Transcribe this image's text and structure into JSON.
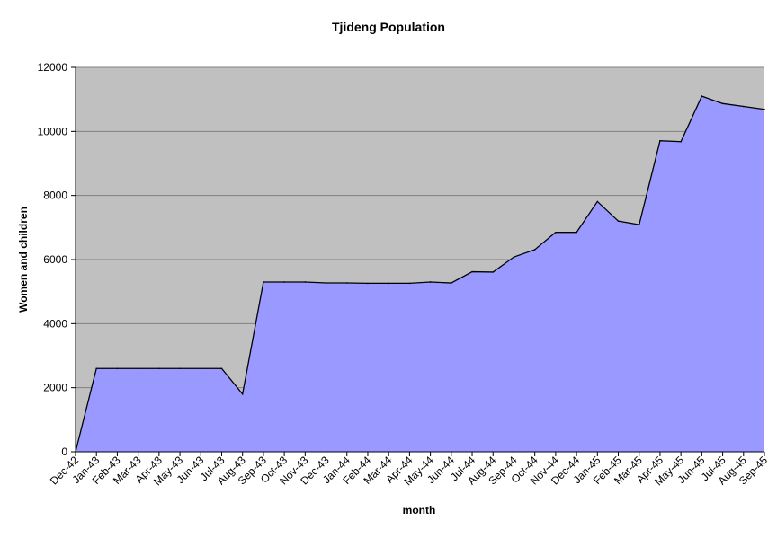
{
  "chart_data": {
    "type": "area",
    "title": "Tjideng Population",
    "xlabel": "month",
    "ylabel": "Women and children",
    "ylim": [
      0,
      12000
    ],
    "yticks": [
      0,
      2000,
      4000,
      6000,
      8000,
      10000,
      12000
    ],
    "grid": true,
    "legend": "none",
    "plot_background": "#c0c0c0",
    "fill_color": "#9999ff",
    "line_color": "#000000",
    "categories": [
      "Dec-42",
      "Jan-43",
      "Feb-43",
      "Mar-43",
      "Apr-43",
      "May-43",
      "Jun-43",
      "Jul-43",
      "Aug-43",
      "Sep-43",
      "Oct-43",
      "Nov-43",
      "Dec-43",
      "Jan-44",
      "Feb-44",
      "Mar-44",
      "Apr-44",
      "May-44",
      "Jun-44",
      "Jul-44",
      "Aug-44",
      "Sep-44",
      "Oct-44",
      "Nov-44",
      "Dec-44",
      "Jan-45",
      "Feb-45",
      "Mar-45",
      "Apr-45",
      "May-45",
      "Jun-45",
      "Jul-45",
      "Aug-45",
      "Sep-45"
    ],
    "values": [
      0,
      2600,
      2600,
      2600,
      2600,
      2600,
      2600,
      2600,
      1800,
      5300,
      5300,
      5300,
      5270,
      5270,
      5260,
      5260,
      5260,
      5300,
      5270,
      5620,
      5610,
      6080,
      6310,
      6850,
      6850,
      7810,
      7200,
      7090,
      9710,
      9680,
      11100,
      10870,
      10780,
      10690
    ]
  }
}
